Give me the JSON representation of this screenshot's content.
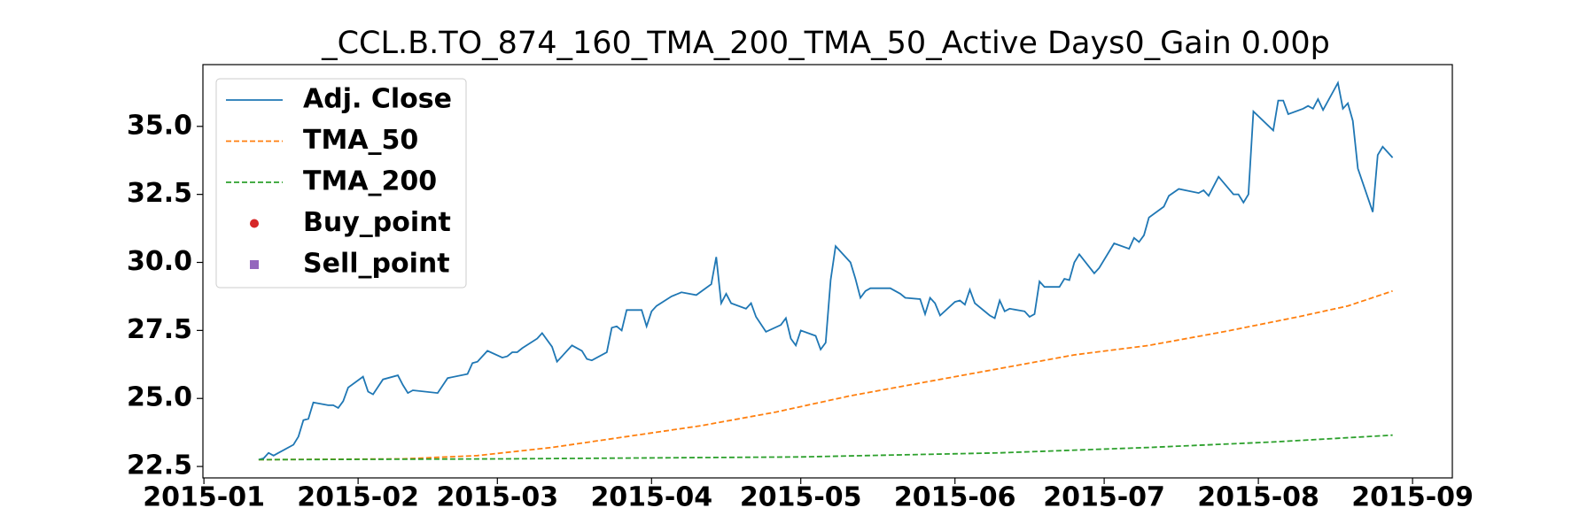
{
  "chart_data": {
    "type": "line",
    "title": "_CCL.B.TO_874_160_TMA_200_TMA_50_Active Days0_Gain   0.00p",
    "xlim": [
      -0.2,
      251
    ],
    "ylim": [
      22.08,
      37.27
    ],
    "xticks": [
      {
        "value": 0,
        "label": "2015-01"
      },
      {
        "value": 31,
        "label": "2015-02"
      },
      {
        "value": 59,
        "label": "2015-03"
      },
      {
        "value": 90,
        "label": "2015-04"
      },
      {
        "value": 120,
        "label": "2015-05"
      },
      {
        "value": 151,
        "label": "2015-06"
      },
      {
        "value": 181,
        "label": "2015-07"
      },
      {
        "value": 212,
        "label": "2015-08"
      },
      {
        "value": 243,
        "label": "2015-09"
      }
    ],
    "yticks": [
      22.5,
      25.0,
      27.5,
      30.0,
      32.5,
      35.0
    ],
    "legend": "upper left",
    "series": [
      {
        "name": "Adj. Close",
        "color": "#1f77b4",
        "style": "solid",
        "x": [
          11,
          12,
          13,
          14,
          15,
          18,
          19,
          20,
          21,
          22,
          25,
          26,
          27,
          28,
          29,
          32,
          33,
          34,
          36,
          39,
          40,
          41,
          42,
          47,
          49,
          53,
          54,
          55,
          57,
          60,
          61,
          62,
          63,
          64,
          67,
          68,
          70,
          71,
          74,
          76,
          77,
          78,
          81,
          82,
          83,
          84,
          85,
          88,
          89,
          90,
          91,
          94,
          96,
          99,
          102,
          103,
          104,
          105,
          106,
          109,
          110,
          111,
          113,
          116,
          117,
          118,
          119,
          120,
          123,
          124,
          125,
          126,
          127,
          130,
          131,
          132,
          133,
          134,
          138,
          140,
          141,
          144,
          145,
          146,
          147,
          148,
          151,
          152,
          153,
          154,
          155,
          158,
          159,
          160,
          161,
          162,
          165,
          166,
          167,
          168,
          169,
          172,
          173,
          174,
          175,
          176,
          179,
          180,
          183,
          186,
          187,
          188,
          189,
          190,
          193,
          194,
          196,
          200,
          201,
          202,
          204,
          207,
          208,
          209,
          210,
          211,
          215,
          216,
          217,
          218,
          221,
          222,
          223,
          224,
          225,
          228,
          229,
          230,
          231,
          232,
          235,
          236,
          237,
          239
        ],
        "values": [
          22.75,
          22.8,
          23.0,
          22.9,
          23.0,
          23.3,
          23.6,
          24.2,
          24.25,
          24.85,
          24.75,
          24.75,
          24.65,
          24.9,
          25.4,
          25.8,
          25.25,
          25.15,
          25.7,
          25.85,
          25.5,
          25.2,
          25.3,
          25.2,
          25.75,
          25.9,
          26.3,
          26.35,
          26.75,
          26.5,
          26.55,
          26.7,
          26.7,
          26.85,
          27.2,
          27.4,
          26.9,
          26.35,
          26.95,
          26.75,
          26.45,
          26.4,
          26.7,
          27.6,
          27.65,
          27.5,
          28.25,
          28.25,
          27.65,
          28.2,
          28.4,
          28.75,
          28.9,
          28.8,
          29.2,
          30.2,
          28.5,
          28.85,
          28.5,
          28.3,
          28.5,
          28.0,
          27.45,
          27.7,
          27.95,
          27.2,
          26.95,
          27.5,
          27.3,
          26.8,
          27.05,
          29.35,
          30.6,
          30.0,
          29.4,
          28.7,
          28.95,
          29.05,
          29.05,
          28.85,
          28.7,
          28.65,
          28.1,
          28.7,
          28.5,
          28.05,
          28.55,
          28.6,
          28.45,
          29.0,
          28.5,
          28.05,
          27.95,
          28.6,
          28.2,
          28.3,
          28.2,
          28.0,
          28.1,
          29.3,
          29.1,
          29.1,
          29.4,
          29.35,
          30.0,
          30.3,
          29.6,
          29.8,
          30.7,
          30.5,
          30.9,
          30.75,
          31.0,
          31.65,
          32.05,
          32.45,
          32.7,
          32.55,
          32.65,
          32.45,
          33.15,
          32.5,
          32.5,
          32.2,
          32.5,
          35.55,
          34.85,
          35.95,
          35.95,
          35.45,
          35.65,
          35.75,
          35.65,
          36.0,
          35.6,
          36.6,
          35.65,
          35.85,
          35.2,
          33.45,
          31.85,
          33.95,
          34.25,
          33.85
        ]
      },
      {
        "name": "TMA_50",
        "color": "#ff7f0e",
        "style": "dashed",
        "x": [
          11,
          40,
          55,
          70,
          85,
          100,
          115,
          130,
          145,
          160,
          175,
          190,
          205,
          220,
          230,
          239
        ],
        "values": [
          22.75,
          22.78,
          22.9,
          23.2,
          23.6,
          24.0,
          24.5,
          25.1,
          25.6,
          26.1,
          26.6,
          26.95,
          27.45,
          28.0,
          28.4,
          28.95
        ]
      },
      {
        "name": "TMA_200",
        "color": "#2ca02c",
        "style": "dashed",
        "x": [
          11,
          60,
          120,
          160,
          190,
          215,
          239
        ],
        "values": [
          22.75,
          22.78,
          22.85,
          23.0,
          23.2,
          23.4,
          23.65
        ]
      },
      {
        "name": "Buy_point",
        "color": "#d62728",
        "marker": "circle",
        "x": [],
        "values": []
      },
      {
        "name": "Sell_point",
        "color": "#9467bd",
        "marker": "square",
        "x": [],
        "values": []
      }
    ]
  }
}
